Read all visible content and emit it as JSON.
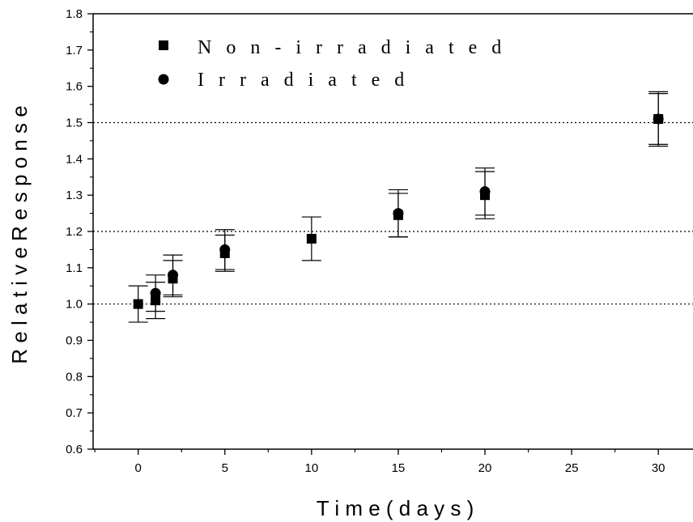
{
  "chart_data": {
    "type": "scatter",
    "xlabel": "T i m e   ( d a y s )",
    "ylabel": "R e l a t i v e   R e s p o n s e",
    "xlim": [
      -2.6,
      32
    ],
    "ylim": [
      0.6,
      1.8
    ],
    "xticks": [
      0,
      5,
      10,
      15,
      20,
      25,
      30
    ],
    "yticks": [
      0.6,
      0.7,
      0.8,
      0.9,
      1.0,
      1.1,
      1.2,
      1.3,
      1.4,
      1.5,
      1.6,
      1.7,
      1.8
    ],
    "ytick_labels": [
      "0.6",
      "0.7",
      "0.8",
      "0.9",
      "1.0",
      "1.1",
      "1.2",
      "1.3",
      "1.4",
      "1.5",
      "1.6",
      "1.7",
      "1.8"
    ],
    "reference_lines": [
      1.0,
      1.2,
      1.5
    ],
    "legend_position": "top-left",
    "series": [
      {
        "name": "N o n - i r r a d i a t e d",
        "marker": "square",
        "points": [
          {
            "x": 0,
            "y": 1.0,
            "err": 0.05
          },
          {
            "x": 1,
            "y": 1.01,
            "err": 0.05
          },
          {
            "x": 2,
            "y": 1.07,
            "err": 0.05
          },
          {
            "x": 5,
            "y": 1.14,
            "err": 0.05
          },
          {
            "x": 10,
            "y": 1.18,
            "err": 0.06
          },
          {
            "x": 15,
            "y": 1.245,
            "err": 0.06
          },
          {
            "x": 20,
            "y": 1.3,
            "err": 0.065
          },
          {
            "x": 30,
            "y": 1.51,
            "err": 0.075
          }
        ]
      },
      {
        "name": "I r r a d i a t e d",
        "marker": "circle",
        "points": [
          {
            "x": 1,
            "y": 1.03,
            "err": 0.05
          },
          {
            "x": 2,
            "y": 1.08,
            "err": 0.055
          },
          {
            "x": 5,
            "y": 1.15,
            "err": 0.055
          },
          {
            "x": 15,
            "y": 1.25,
            "err": 0.065
          },
          {
            "x": 20,
            "y": 1.31,
            "err": 0.065
          },
          {
            "x": 30,
            "y": 1.51,
            "err": 0.07
          }
        ]
      }
    ]
  }
}
